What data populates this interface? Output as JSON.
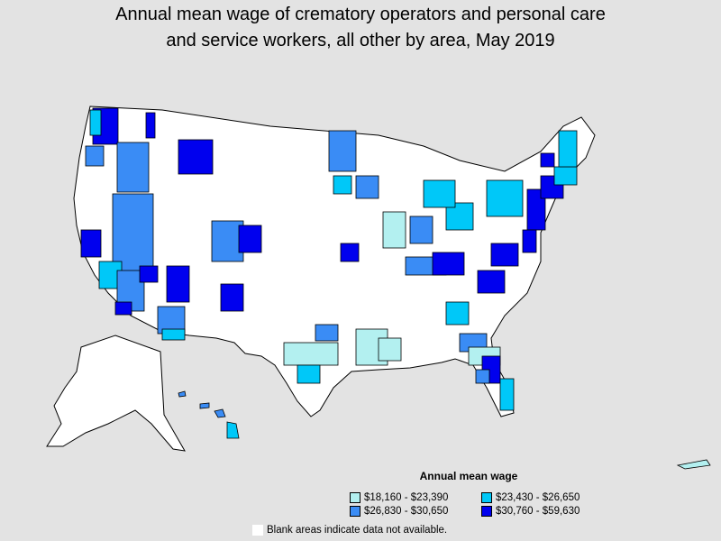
{
  "title_line1": "Annual mean wage of crematory operators and personal care",
  "title_line2": "and service workers, all other by area, May 2019",
  "legend": {
    "title": "Annual mean wage",
    "items": [
      {
        "label": "$18,160 - $23,390",
        "color": "#b3f0f0"
      },
      {
        "label": "$23,430 - $26,650",
        "color": "#00c8f8"
      },
      {
        "label": "$26,830 - $30,650",
        "color": "#3a8cf5"
      },
      {
        "label": "$30,760 - $59,630",
        "color": "#0000ee"
      }
    ]
  },
  "note": "Blank areas indicate data not available.",
  "colors": {
    "background": "#e3e3e3",
    "blank": "#ffffff",
    "border": "#000000"
  }
}
